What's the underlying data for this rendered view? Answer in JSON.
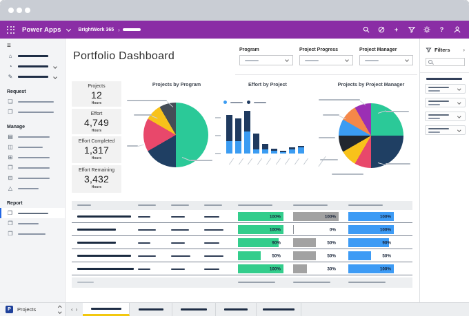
{
  "appbar": {
    "brand": "Power Apps",
    "env": "BrightWork 365",
    "crumb_sep": "›"
  },
  "icons": {
    "hamburger": "≡",
    "home": "⌂",
    "recent": "◔",
    "pinned": "✎",
    "request_doc": "❏",
    "request_form": "❐",
    "briefcase": "▤",
    "people": "◫",
    "grid": "⊞",
    "doc": "❐",
    "list": "⊟",
    "warning": "△",
    "report": "❐",
    "add": "+",
    "help": "?",
    "nav_left": "‹",
    "nav_right": "›",
    "pane_expand": "›"
  },
  "sidebar": {
    "sections": [
      {
        "label": "Request"
      },
      {
        "label": "Manage"
      },
      {
        "label": "Report"
      }
    ]
  },
  "header": {
    "title": "Portfolio Dashboard",
    "filters": [
      {
        "label": "Program"
      },
      {
        "label": "Project Progress"
      },
      {
        "label": "Project Manager"
      }
    ]
  },
  "kpis": [
    {
      "label": "Projects",
      "value": "12",
      "unit": "Hours"
    },
    {
      "label": "Effort",
      "value": "4,749",
      "unit": "Hours"
    },
    {
      "label": "Effort Completed",
      "value": "1,317",
      "unit": "Hours"
    },
    {
      "label": "Effort Remaining",
      "value": "3,432",
      "unit": "Hours"
    }
  ],
  "chart_data": [
    {
      "type": "pie",
      "title": "Projects by Program",
      "labels_redacted": true,
      "total_projects": 12,
      "slices": [
        {
          "value": 6,
          "color": "#2bc998"
        },
        {
          "value": 2,
          "color": "#1f3f63"
        },
        {
          "value": 2,
          "color": "#e8486b"
        },
        {
          "value": 1,
          "color": "#f8c21a"
        },
        {
          "value": 1,
          "color": "#454d57"
        }
      ]
    },
    {
      "type": "bar",
      "stacked": true,
      "title": "Effort by Project",
      "x_labels_redacted": true,
      "y_tick_labels_redacted": true,
      "legend_labels_redacted": true,
      "value_unit": "percent of plot height (data labels not shown)",
      "categories": [
        "",
        "",
        "",
        "",
        "",
        "",
        "",
        "",
        ""
      ],
      "series": [
        {
          "name": "series-blue",
          "color": "#3b9cf2",
          "values": [
            29,
            29,
            51,
            9,
            9,
            6,
            3,
            10,
            15
          ]
        },
        {
          "name": "series-navy",
          "color": "#1f3a5f",
          "values": [
            62,
            54,
            49,
            37,
            13,
            6,
            3,
            5,
            2
          ]
        }
      ]
    },
    {
      "type": "pie",
      "title": "Projects by Project Manager",
      "labels_redacted": true,
      "total_projects": 12,
      "slices": [
        {
          "value": 3,
          "color": "#2bc998"
        },
        {
          "value": 3,
          "color": "#1f3f63"
        },
        {
          "value": 1,
          "color": "#e8486b"
        },
        {
          "value": 1,
          "color": "#f8c21a"
        },
        {
          "value": 1,
          "color": "#22272e"
        },
        {
          "value": 1,
          "color": "#3b9cf2"
        },
        {
          "value": 1,
          "color": "#f58849"
        },
        {
          "value": 1,
          "color": "#9b2fb4"
        }
      ]
    }
  ],
  "table": {
    "header_redacted": true,
    "progress_colors": [
      "#33cd8c",
      "#a2a2a2",
      "#3d9bf5"
    ],
    "rows": [
      {
        "bars": [
          100,
          100,
          100
        ]
      },
      {
        "bars": [
          100,
          0,
          100
        ]
      },
      {
        "bars": [
          90,
          50,
          90
        ]
      },
      {
        "bars": [
          50,
          50,
          50
        ]
      },
      {
        "bars": [
          100,
          30,
          100
        ]
      }
    ]
  },
  "filters_pane": {
    "title": "Filters",
    "search_placeholder": "",
    "dropdown_count": 4
  },
  "bottombar": {
    "selector_initial": "P",
    "selector_label": "Projects",
    "tab_count": 5,
    "active_tab_index": 0
  }
}
